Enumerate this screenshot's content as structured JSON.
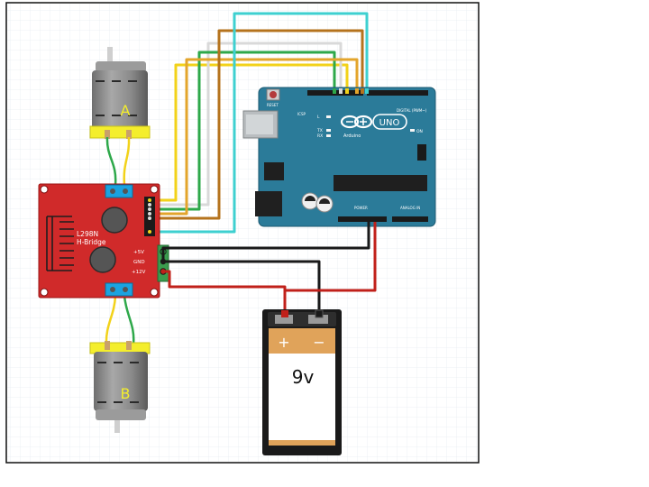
{
  "motors": {
    "a_label": "A",
    "b_label": "B"
  },
  "driver": {
    "line1": "L298N",
    "line2": "H-Bridge",
    "pin_5v": "+5V",
    "pin_gnd": "GND",
    "pin_12v": "+12V"
  },
  "arduino": {
    "reset_label": "RESET",
    "icsp_label": "ICSP",
    "uno_label": "UNO",
    "brand_label": "Arduino",
    "digital_label": "DIGITAL (PWM~)",
    "power_label": "POWER",
    "analog_label": "ANALOG IN",
    "tx_label": "TX",
    "rx_label": "RX",
    "l_label": "L",
    "on_label": "ON"
  },
  "battery": {
    "plus_label": "+",
    "minus_label": "−",
    "voltage_label": "9v"
  },
  "colors": {
    "driver_red": "#d02a2a",
    "arduino_teal": "#2b7b99",
    "battery_orange": "#e0a35a",
    "wire_yellow": "#f2d21a",
    "wire_white": "#d9d9d9",
    "wire_green": "#2ea84a",
    "wire_brown": "#b5731d",
    "wire_cyan": "#3ed0d0",
    "wire_black": "#1a1a1a",
    "wire_red": "#c0201a"
  }
}
